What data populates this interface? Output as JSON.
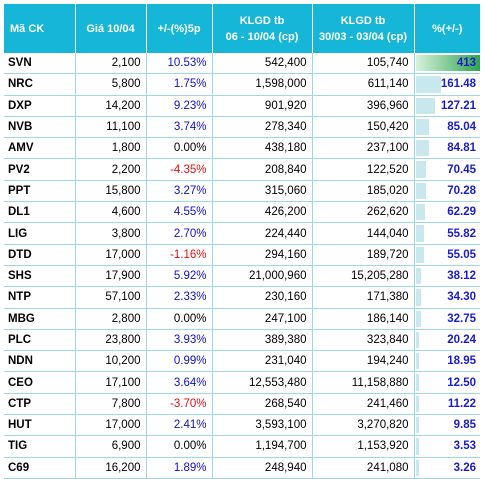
{
  "headers": {
    "code": "Mã CK",
    "price": "Giá 10/04",
    "change": "+/-(%)5p",
    "vol1_line1": "KLGD tb",
    "vol1_line2": "06 - 10/04 (cp)",
    "vol2_line1": "KLGD tb",
    "vol2_line2": "30/03 - 03/04 (cp)",
    "pct": "%(+/-)"
  },
  "colors": {
    "header_bg": "#16b6d8",
    "positive": "#1010c8",
    "negative": "#e01010",
    "bar": "#c8e8ee",
    "top_bar": "#2fa44f"
  },
  "max_pct": 413,
  "rows": [
    {
      "code": "SVN",
      "price": "2,100",
      "change": "10.53%",
      "sign": "pos",
      "vol1": "542,400",
      "vol2": "105,740",
      "pct": "413",
      "pct_value": 413
    },
    {
      "code": "NRC",
      "price": "5,800",
      "change": "1.75%",
      "sign": "pos",
      "vol1": "1,598,000",
      "vol2": "611,140",
      "pct": "161.48",
      "pct_value": 161.48
    },
    {
      "code": "DXP",
      "price": "14,200",
      "change": "9.23%",
      "sign": "pos",
      "vol1": "901,920",
      "vol2": "396,960",
      "pct": "127.21",
      "pct_value": 127.21
    },
    {
      "code": "NVB",
      "price": "11,100",
      "change": "3.74%",
      "sign": "pos",
      "vol1": "278,340",
      "vol2": "150,420",
      "pct": "85.04",
      "pct_value": 85.04
    },
    {
      "code": "AMV",
      "price": "1,800",
      "change": "0.00%",
      "sign": "zero",
      "vol1": "438,180",
      "vol2": "237,100",
      "pct": "84.81",
      "pct_value": 84.81
    },
    {
      "code": "PV2",
      "price": "2,200",
      "change": "-4.35%",
      "sign": "neg",
      "vol1": "208,840",
      "vol2": "122,520",
      "pct": "70.45",
      "pct_value": 70.45
    },
    {
      "code": "PPT",
      "price": "15,800",
      "change": "3.27%",
      "sign": "pos",
      "vol1": "315,060",
      "vol2": "185,020",
      "pct": "70.28",
      "pct_value": 70.28
    },
    {
      "code": "DL1",
      "price": "4,600",
      "change": "4.55%",
      "sign": "pos",
      "vol1": "426,200",
      "vol2": "262,620",
      "pct": "62.29",
      "pct_value": 62.29
    },
    {
      "code": "LIG",
      "price": "3,800",
      "change": "2.70%",
      "sign": "pos",
      "vol1": "224,440",
      "vol2": "144,040",
      "pct": "55.82",
      "pct_value": 55.82
    },
    {
      "code": "DTD",
      "price": "17,000",
      "change": "-1.16%",
      "sign": "neg",
      "vol1": "294,160",
      "vol2": "189,720",
      "pct": "55.05",
      "pct_value": 55.05
    },
    {
      "code": "SHS",
      "price": "17,900",
      "change": "5.92%",
      "sign": "pos",
      "vol1": "21,000,960",
      "vol2": "15,205,280",
      "pct": "38.12",
      "pct_value": 38.12
    },
    {
      "code": "NTP",
      "price": "57,100",
      "change": "2.33%",
      "sign": "pos",
      "vol1": "230,160",
      "vol2": "171,380",
      "pct": "34.30",
      "pct_value": 34.3
    },
    {
      "code": "MBG",
      "price": "2,800",
      "change": "0.00%",
      "sign": "zero",
      "vol1": "247,100",
      "vol2": "186,140",
      "pct": "32.75",
      "pct_value": 32.75
    },
    {
      "code": "PLC",
      "price": "23,800",
      "change": "3.93%",
      "sign": "pos",
      "vol1": "389,380",
      "vol2": "323,840",
      "pct": "20.24",
      "pct_value": 20.24
    },
    {
      "code": "NDN",
      "price": "10,200",
      "change": "0.99%",
      "sign": "pos",
      "vol1": "231,040",
      "vol2": "194,240",
      "pct": "18.95",
      "pct_value": 18.95
    },
    {
      "code": "CEO",
      "price": "17,100",
      "change": "3.64%",
      "sign": "pos",
      "vol1": "12,553,480",
      "vol2": "11,158,880",
      "pct": "12.50",
      "pct_value": 12.5
    },
    {
      "code": "CTP",
      "price": "7,800",
      "change": "-3.70%",
      "sign": "neg",
      "vol1": "268,540",
      "vol2": "241,460",
      "pct": "11.22",
      "pct_value": 11.22
    },
    {
      "code": "HUT",
      "price": "17,000",
      "change": "2.41%",
      "sign": "pos",
      "vol1": "3,593,100",
      "vol2": "3,270,820",
      "pct": "9.85",
      "pct_value": 9.85
    },
    {
      "code": "TIG",
      "price": "6,900",
      "change": "0.00%",
      "sign": "zero",
      "vol1": "1,194,700",
      "vol2": "1,153,920",
      "pct": "3.53",
      "pct_value": 3.53
    },
    {
      "code": "C69",
      "price": "16,200",
      "change": "1.89%",
      "sign": "pos",
      "vol1": "248,940",
      "vol2": "241,080",
      "pct": "3.26",
      "pct_value": 3.26
    }
  ]
}
